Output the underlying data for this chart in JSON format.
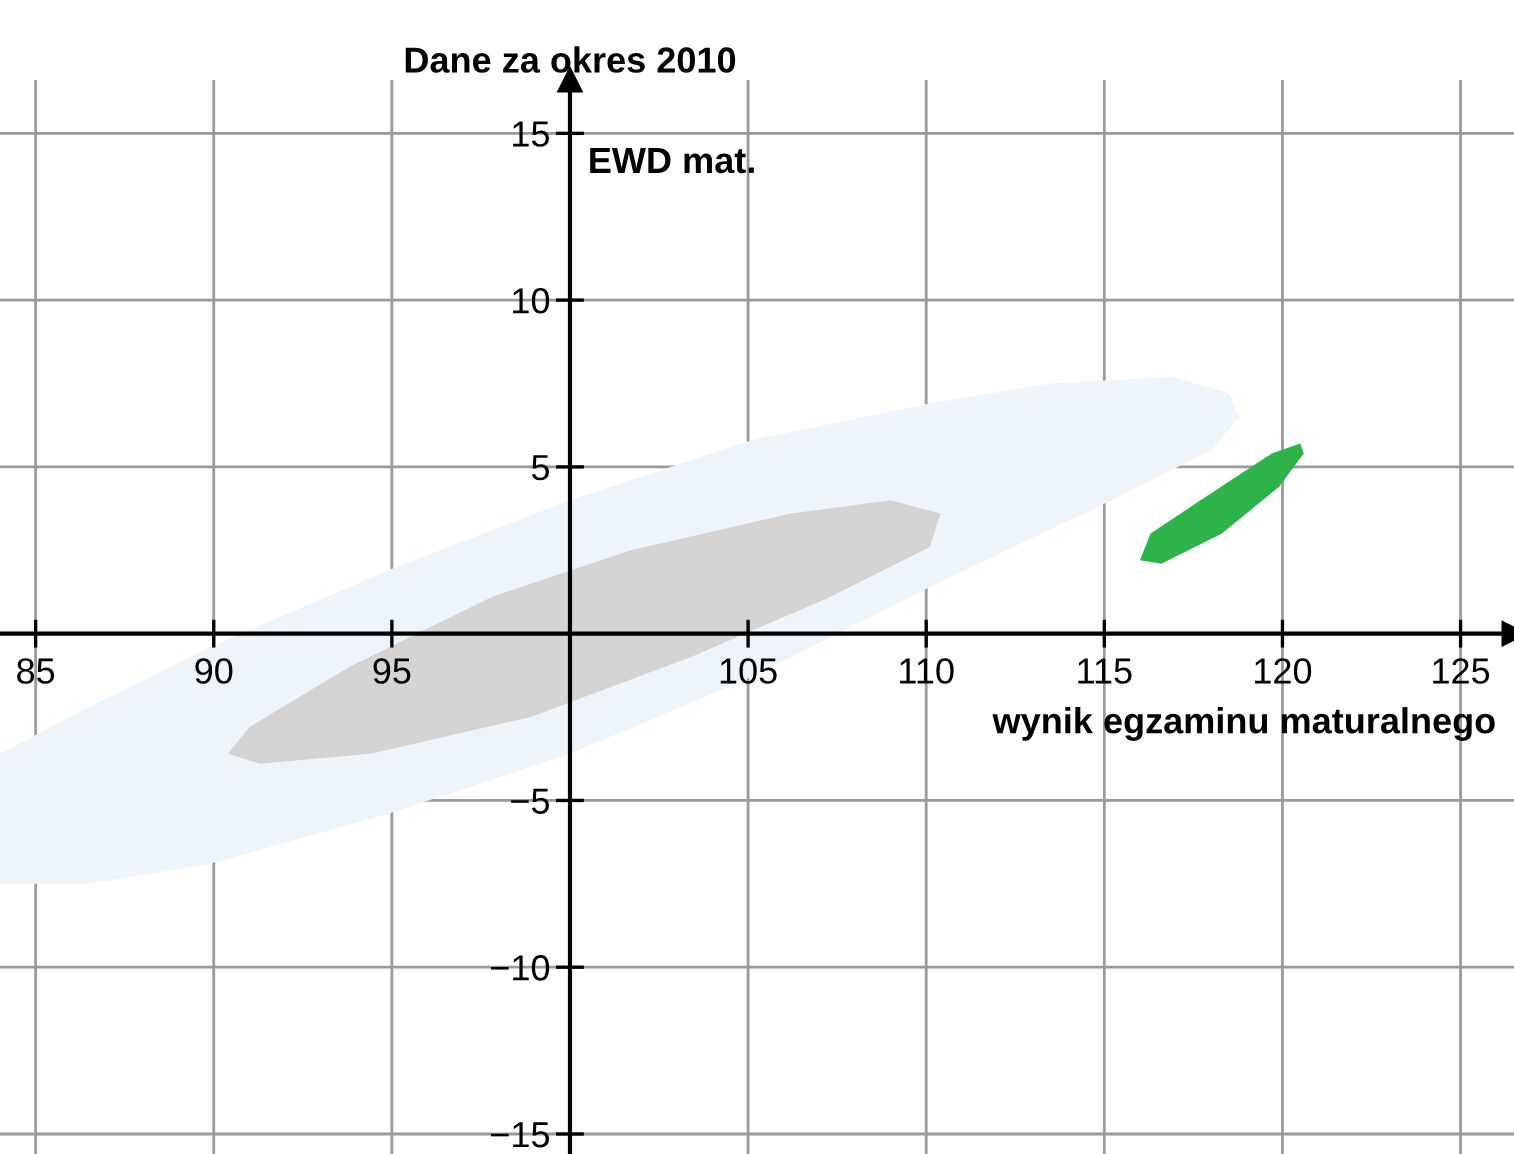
{
  "chart_data": {
    "type": "area",
    "title": "Dane za okres 2010",
    "xlabel": "wynik egzaminu maturalnego",
    "ylabel": "EWD mat.",
    "xlim": [
      84,
      126.5
    ],
    "ylim": [
      -15.6,
      16.6
    ],
    "xticks": [
      85,
      90,
      95,
      105,
      110,
      115,
      120,
      125
    ],
    "yticks": [
      {
        "value": -15,
        "label": "−15"
      },
      {
        "value": -10,
        "label": "−10"
      },
      {
        "value": -5,
        "label": "−5"
      },
      5,
      10,
      15
    ],
    "grid": true,
    "series": [
      {
        "color": "#eef5fa",
        "x": [
          84,
          86.5,
          89.9,
          94.9,
          100,
          105.1,
          110.1,
          113.5,
          116.9,
          118.5,
          118.8,
          118,
          115.2,
          110.1,
          105.1,
          100,
          94.9,
          89.9,
          86.5,
          84
        ],
        "values": [
          -3.6,
          -2.2,
          -0.4,
          1.9,
          4.0,
          5.8,
          6.9,
          7.5,
          7.7,
          7.2,
          6.5,
          5.5,
          4.0,
          1.4,
          -1.3,
          -3.6,
          -5.4,
          -6.9,
          -7.5,
          -7.5
        ]
      },
      {
        "color": "#d4d4d4",
        "x": [
          90.4,
          91,
          93.8,
          97.8,
          101.7,
          106.2,
          109,
          110.4,
          110.1,
          107.3,
          103.4,
          98.9,
          94.4,
          91.3
        ],
        "values": [
          -3.6,
          -2.8,
          -1.0,
          1.1,
          2.5,
          3.6,
          4.0,
          3.6,
          2.6,
          1.1,
          -0.7,
          -2.5,
          -3.6,
          -3.9
        ]
      },
      {
        "color": "#2db34a",
        "x": [
          116,
          116.3,
          117.7,
          119.7,
          120.5,
          120.6,
          119.9,
          118.3,
          116.6
        ],
        "values": [
          2.2,
          3.0,
          4.0,
          5.4,
          5.7,
          5.4,
          4.4,
          3.0,
          2.1
        ]
      }
    ]
  }
}
